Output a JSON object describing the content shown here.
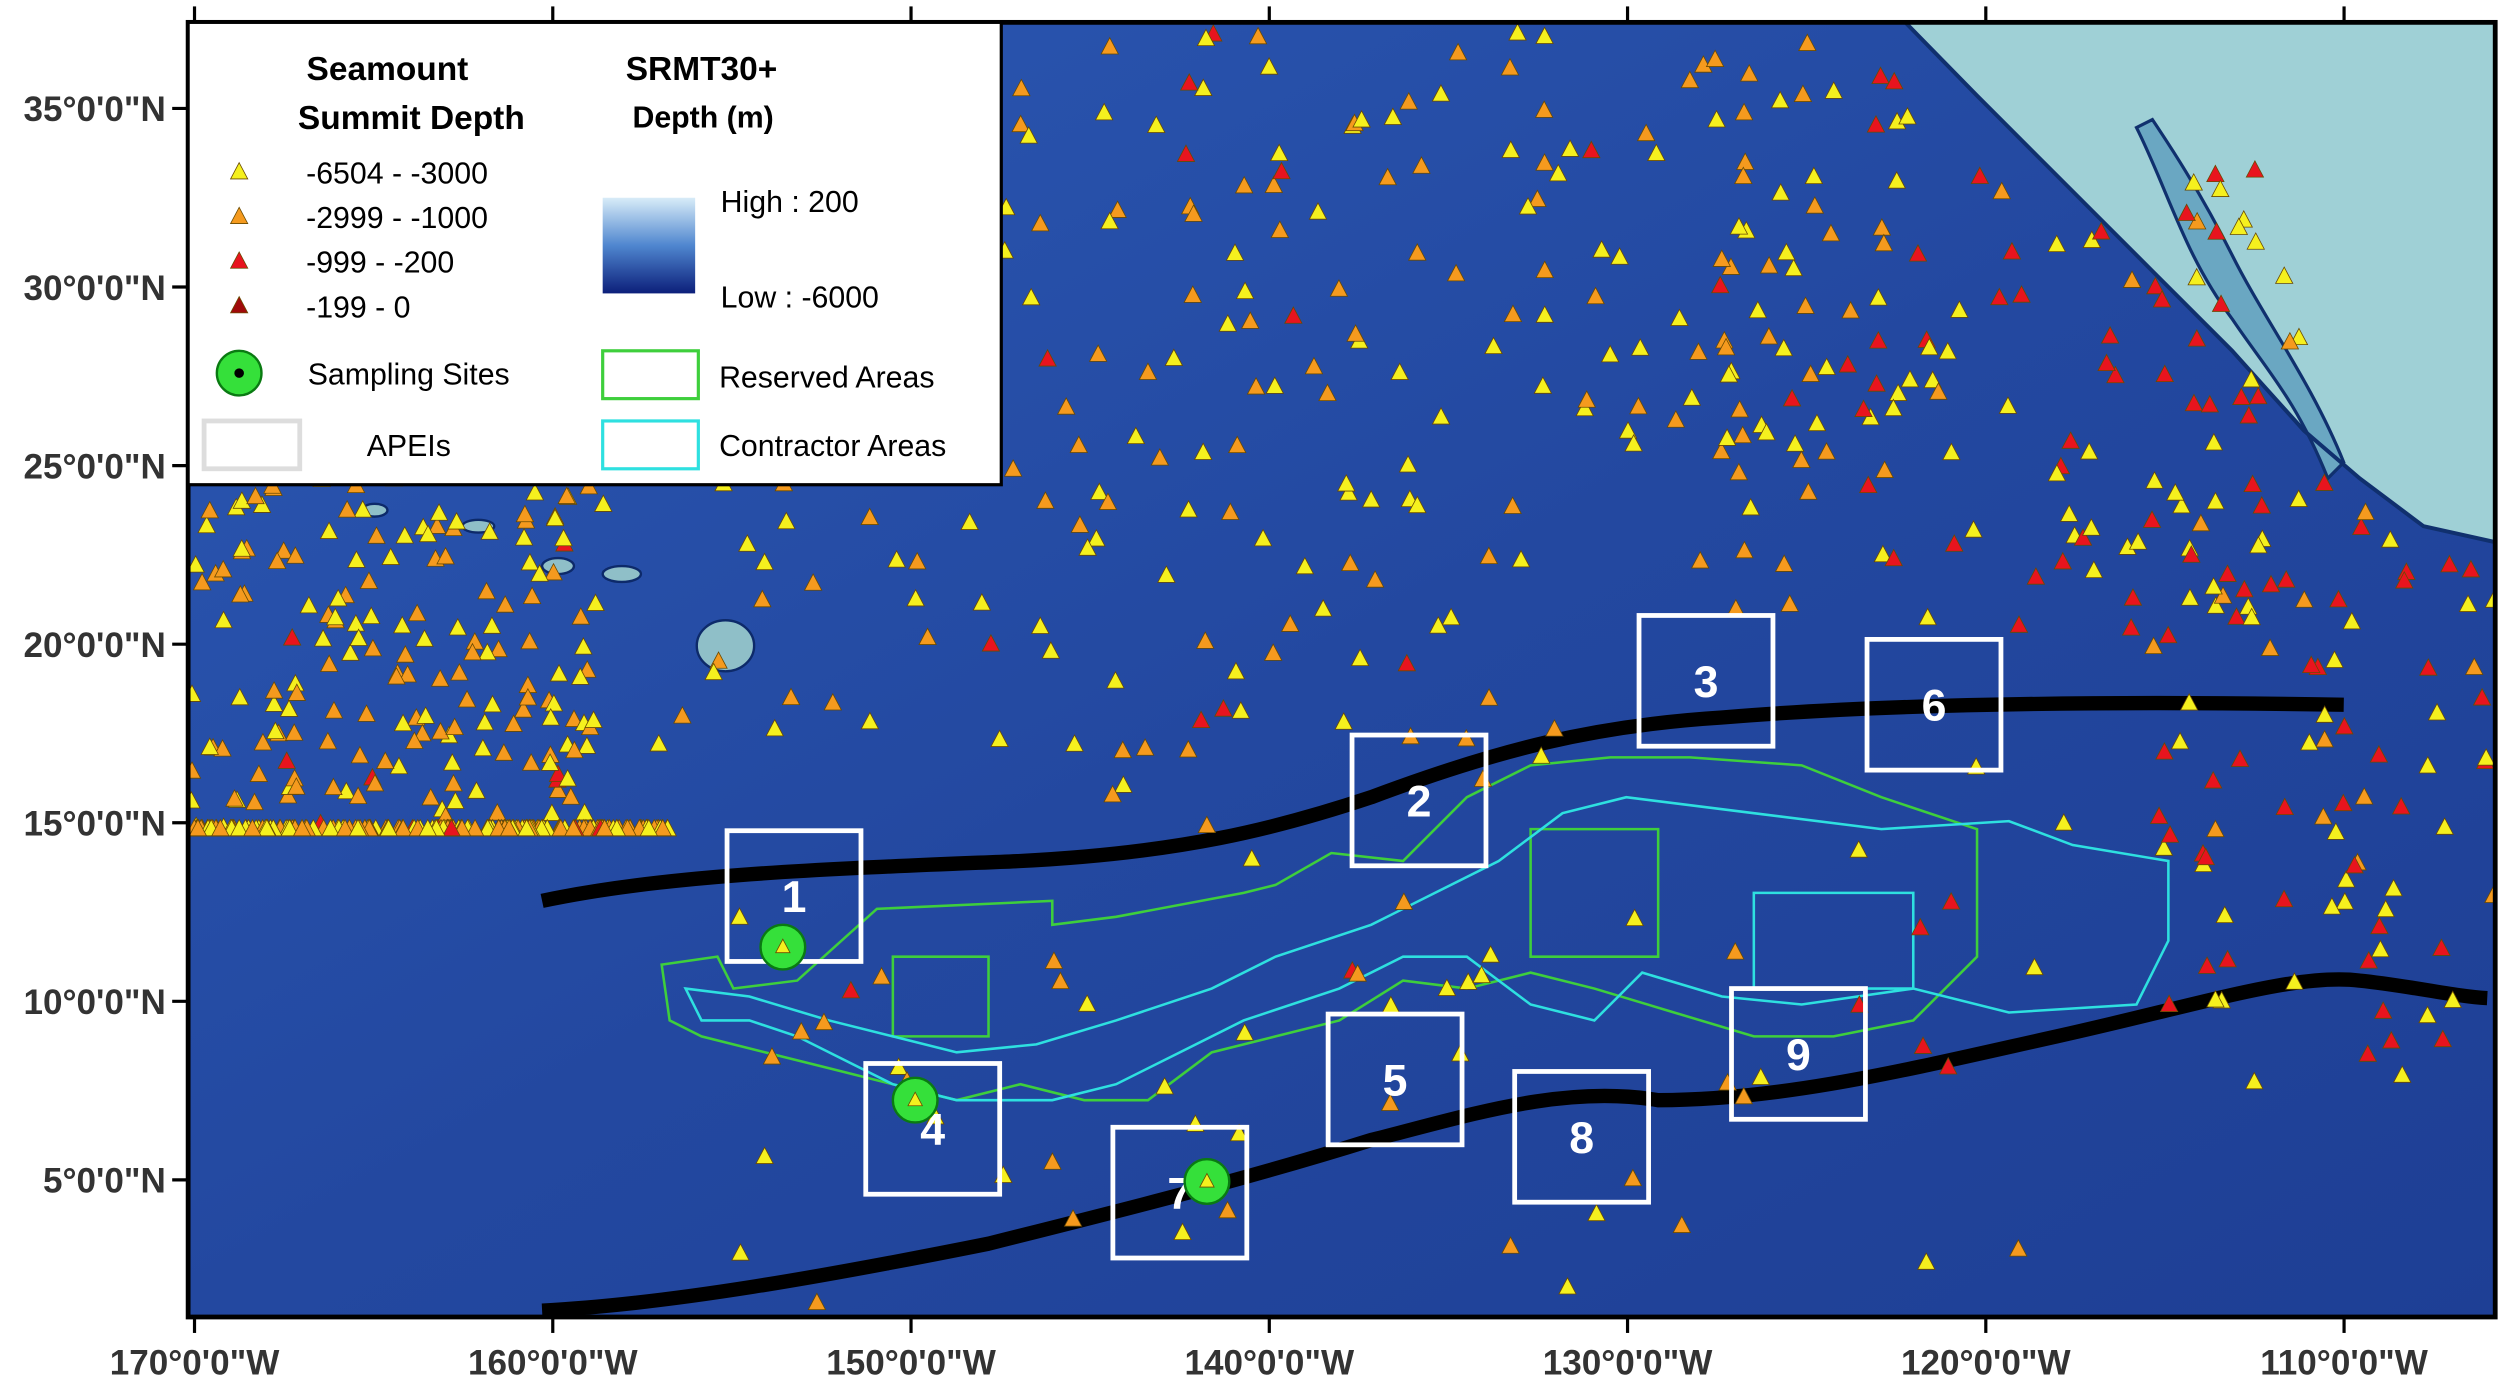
{
  "legend": {
    "seamount_title": [
      "Seamount",
      "Summit Depth"
    ],
    "depth_classes": [
      "-6504 - -3000",
      "-2999 - -1000",
      "-999 - -200",
      "-199 - 0"
    ],
    "sampling_sites": "Sampling Sites",
    "apeis": "APEIs",
    "srtm_title": "SRMT30+",
    "srtm_subtitle": "Depth (m)",
    "high": "High : 200",
    "low": "Low : -6000",
    "reserved": "Reserved Areas",
    "contractor": "Contractor Areas"
  },
  "axes": {
    "x_labels": [
      "170°0'0\"W",
      "160°0'0\"W",
      "150°0'0\"W",
      "140°0'0\"W",
      "130°0'0\"W",
      "120°0'0\"W",
      "110°0'0\"W"
    ],
    "y_labels": [
      "35°0'0\"N",
      "30°0'0\"N",
      "25°0'0\"N",
      "20°0'0\"N",
      "15°0'0\"N",
      "10°0'0\"N",
      "5°0'0\"N"
    ]
  },
  "apeis": [
    "1",
    "2",
    "3",
    "4",
    "5",
    "6",
    "7",
    "8",
    "9"
  ]
}
